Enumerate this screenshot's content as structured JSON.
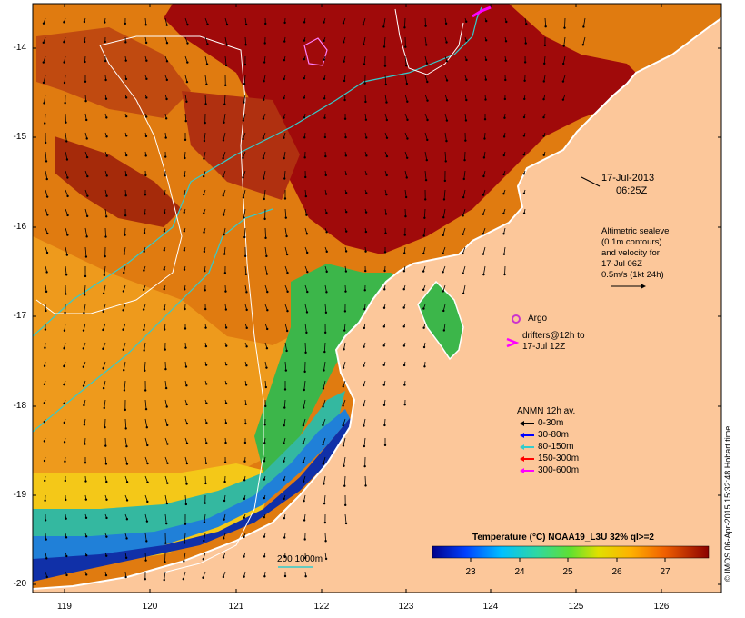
{
  "map": {
    "timestamp_line1": "17-Jul-2013",
    "timestamp_line2": "06:25Z",
    "alt_label": [
      "Altimetric sealevel",
      "(0.1m contours)",
      "and velocity for",
      "17-Jul 06Z",
      "0.5m/s (1kt 24h)"
    ],
    "argo_label": "Argo",
    "drifters_label": [
      "drifters@12h to",
      "17-Jul 12Z"
    ],
    "anmn_title": "ANMN 12h av.",
    "anmn_legend": [
      {
        "label": "0-30m",
        "color": "#000000"
      },
      {
        "label": "30-80m",
        "color": "#0000ff"
      },
      {
        "label": "80-150m",
        "color": "#33cccc"
      },
      {
        "label": "150-300m",
        "color": "#ff0000"
      },
      {
        "label": "300-600m",
        "color": "#ff00ff"
      }
    ],
    "isobath_label": "200  1000m",
    "colorbar_title": "Temperature (°C) NOAA19_L3U 32% ql>=2",
    "colorbar_ticks": [
      "23",
      "24",
      "25",
      "26",
      "27"
    ],
    "y_ticks": [
      "-14",
      "-15",
      "-16",
      "-17",
      "-18",
      "-19",
      "-20"
    ],
    "x_ticks": [
      "119",
      "120",
      "121",
      "122",
      "123",
      "124",
      "125",
      "126"
    ],
    "credit": "© IMOS 06-Apr-2015 15:32:48 Hobart time",
    "colors": {
      "land": "#fcc79a",
      "hot": "#a00a0a",
      "warm": "#d86010",
      "mid": "#f29a18",
      "cool": "#39b54a",
      "cold": "#1020a0",
      "contour": "#ffffff",
      "isobath": "#33cccc",
      "argo": "#cc33cc"
    }
  }
}
